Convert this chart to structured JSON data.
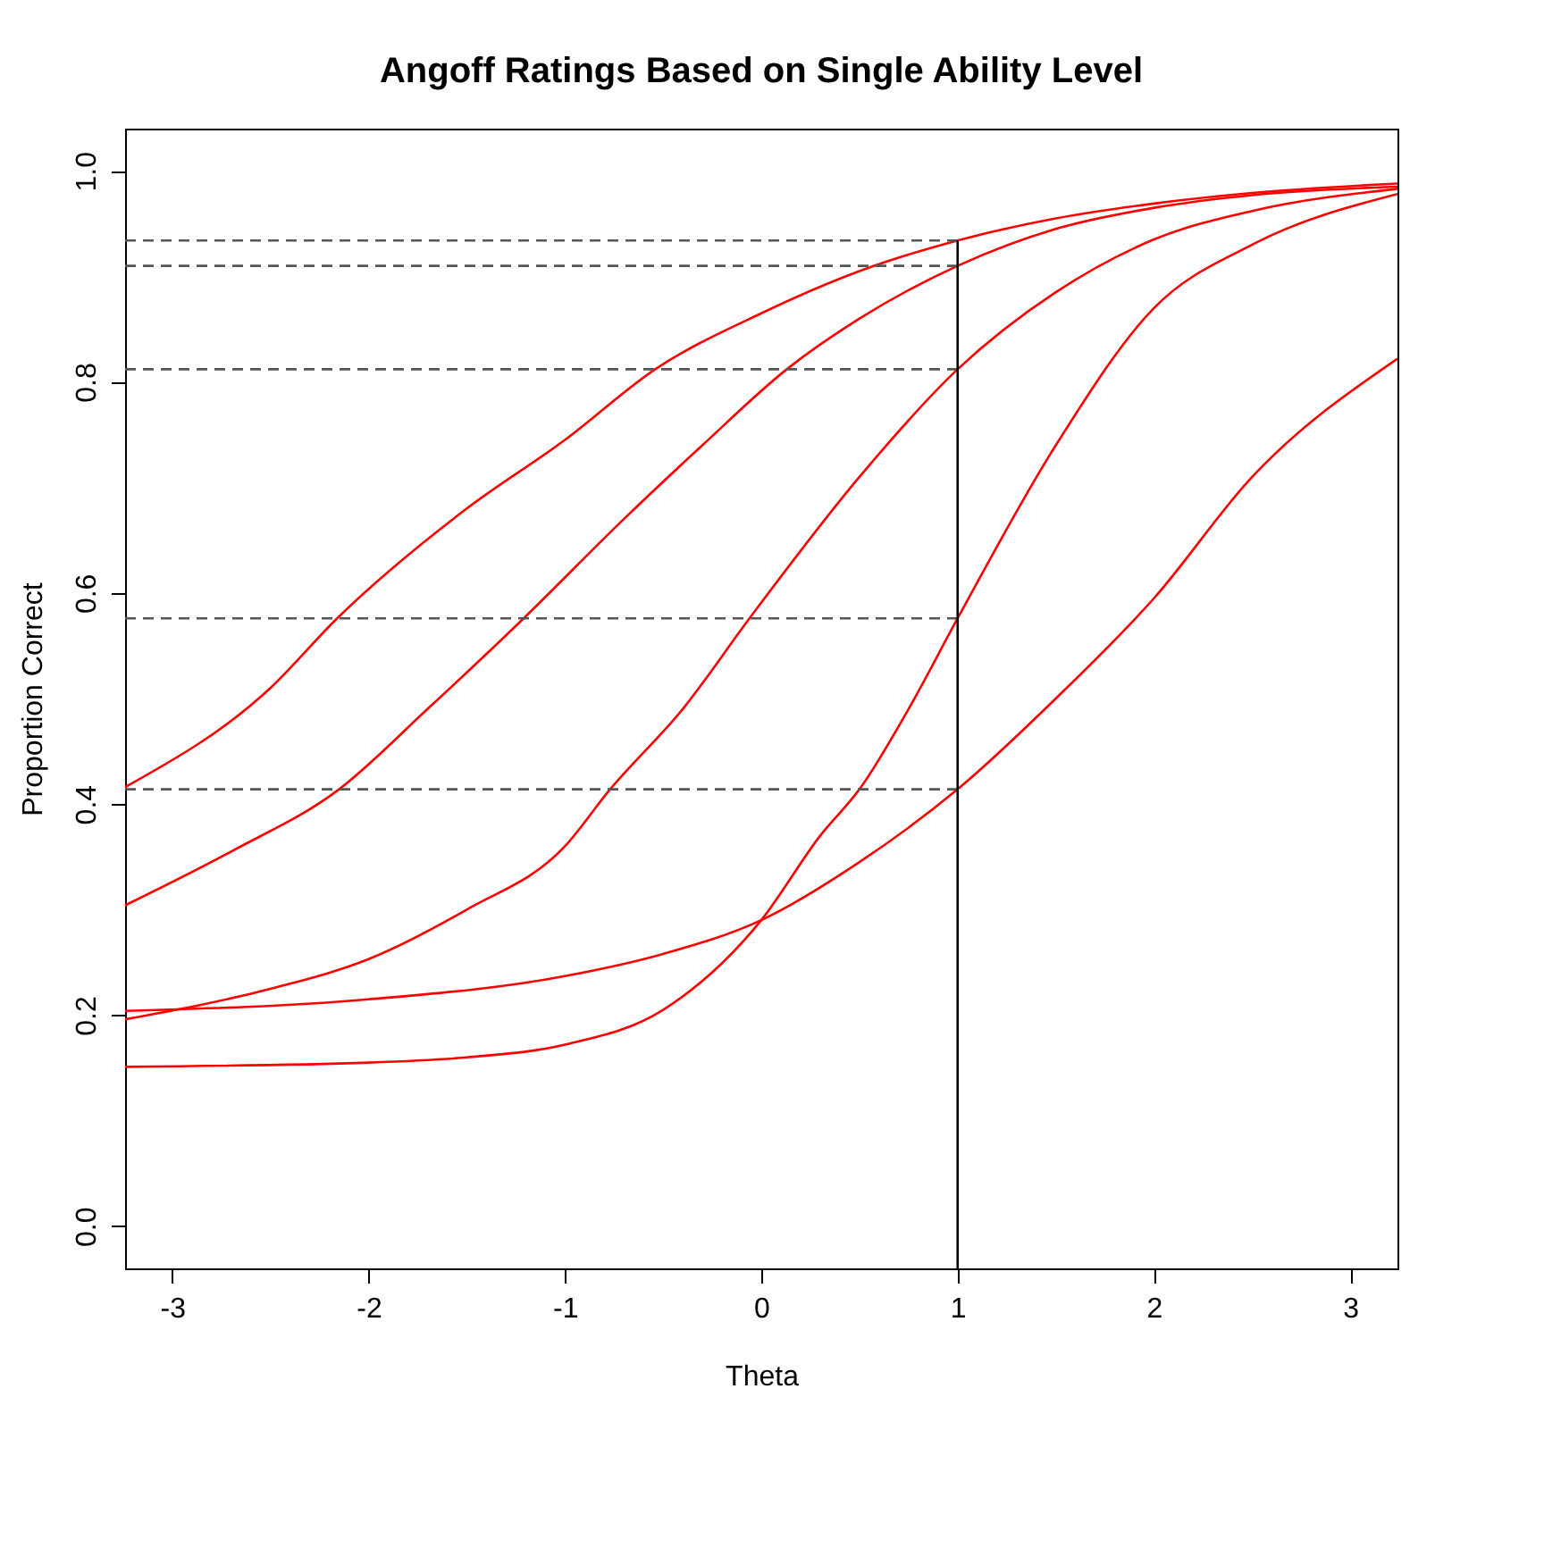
{
  "chart_data": {
    "type": "line",
    "title": "Angoff Ratings Based on Single Ability Level",
    "xlabel": "Theta",
    "ylabel": "Proportion Correct",
    "xlim": [
      -3.24,
      3.24
    ],
    "ylim": [
      -0.04,
      1.04
    ],
    "xticks": [
      -3,
      -2,
      -1,
      0,
      1,
      2,
      3
    ],
    "yticks": [
      {
        "value": 0,
        "label": "0.0"
      },
      {
        "value": 0.2,
        "label": "0.2"
      },
      {
        "value": 0.4,
        "label": "0.4"
      },
      {
        "value": 0.6,
        "label": "0.6"
      },
      {
        "value": 0.8,
        "label": "0.8"
      },
      {
        "value": 1,
        "label": "1.0"
      }
    ],
    "series": [
      {
        "color": "#ff0000",
        "x": [
          -3.24,
          -2.5,
          -2.16,
          -1.5,
          -1,
          -0.54,
          0,
          0.5,
          1,
          1.5,
          2,
          2.5,
          3.24
        ],
        "values": [
          0.416,
          0.51,
          0.576,
          0.68,
          0.745,
          0.812,
          0.865,
          0.905,
          0.934,
          0.955,
          0.969,
          0.979,
          0.988
        ]
      },
      {
        "color": "#ff0000",
        "x": [
          -3.24,
          -2.7,
          -2.15,
          -1.7,
          -1.21,
          -0.7,
          -0.3,
          0.13,
          0.5,
          1,
          1.5,
          2,
          2.5,
          3.24
        ],
        "values": [
          0.304,
          0.355,
          0.414,
          0.49,
          0.576,
          0.67,
          0.74,
          0.812,
          0.86,
          0.91,
          0.945,
          0.965,
          0.977,
          0.985
        ]
      },
      {
        "color": "#ff0000",
        "x": [
          -3.24,
          -2.5,
          -2,
          -1.5,
          -1,
          -0.77,
          -0.4,
          -0.06,
          0.5,
          1,
          1.5,
          2,
          2.5,
          3.24
        ],
        "values": [
          0.196,
          0.225,
          0.253,
          0.3,
          0.36,
          0.414,
          0.49,
          0.576,
          0.71,
          0.812,
          0.885,
          0.935,
          0.962,
          0.983
        ]
      },
      {
        "color": "#ff0000",
        "x": [
          -3.24,
          -2,
          -1.5,
          -1,
          -0.5,
          0,
          0.3,
          0.5,
          0.75,
          1,
          1.5,
          2,
          2.5,
          3.24
        ],
        "values": [
          0.151,
          0.155,
          0.16,
          0.172,
          0.205,
          0.29,
          0.37,
          0.414,
          0.49,
          0.576,
          0.74,
          0.87,
          0.93,
          0.978
        ]
      },
      {
        "color": "#ff0000",
        "x": [
          -3.24,
          -2,
          -1,
          -0.5,
          0,
          0.5,
          1,
          1.5,
          2,
          2.5,
          3.24
        ],
        "values": [
          0.204,
          0.215,
          0.237,
          0.258,
          0.29,
          0.345,
          0.414,
          0.5,
          0.595,
          0.71,
          0.822
        ]
      },
      {
        "color": "#555555",
        "line_style": "dashed",
        "x": [
          -3.24,
          1
        ],
        "values": [
          0.934,
          0.934
        ]
      },
      {
        "color": "#555555",
        "line_style": "dashed",
        "x": [
          -3.24,
          1
        ],
        "values": [
          0.91,
          0.91
        ]
      },
      {
        "color": "#555555",
        "line_style": "dashed",
        "x": [
          -3.24,
          1
        ],
        "values": [
          0.812,
          0.812
        ]
      },
      {
        "color": "#555555",
        "line_style": "dashed",
        "x": [
          -3.24,
          1
        ],
        "values": [
          0.576,
          0.576
        ]
      },
      {
        "color": "#555555",
        "line_style": "dashed",
        "x": [
          -3.24,
          1
        ],
        "values": [
          0.414,
          0.414
        ]
      },
      {
        "color": "#000000",
        "x": [
          1,
          1
        ],
        "values": [
          -0.04,
          0.934
        ]
      }
    ]
  }
}
